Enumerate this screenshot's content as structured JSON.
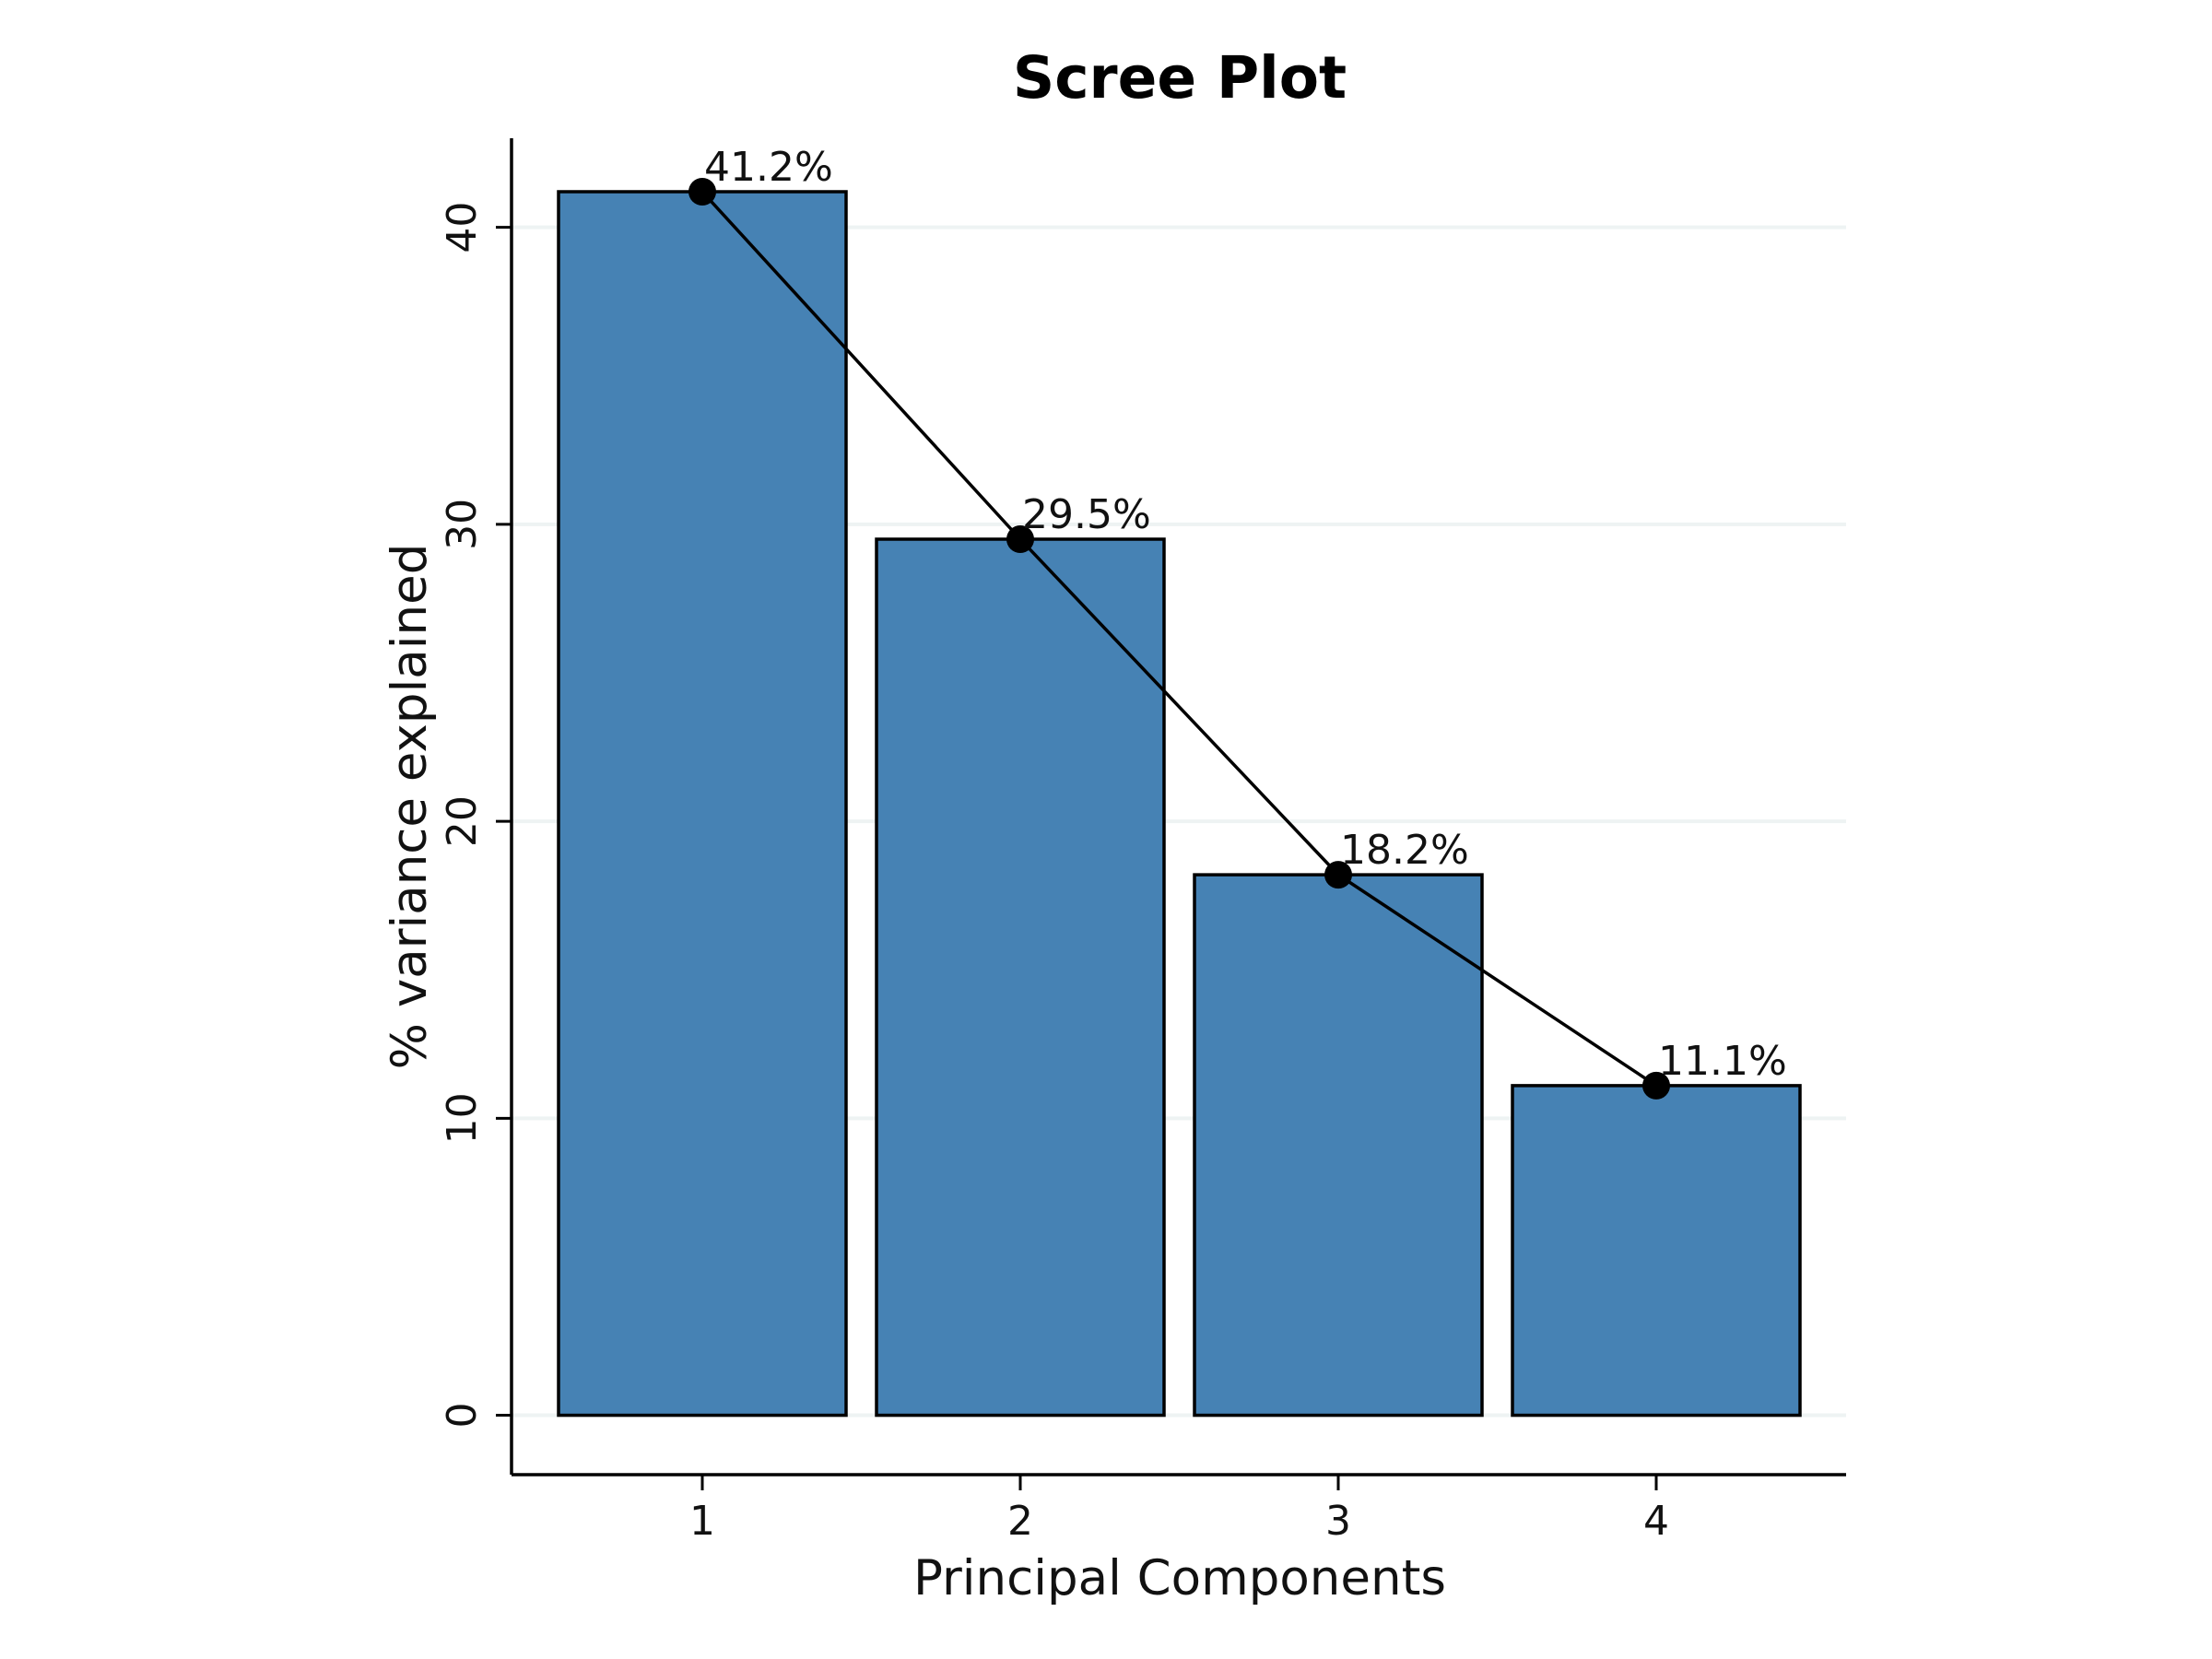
{
  "chart_data": {
    "type": "bar",
    "title": "Scree Plot",
    "xlabel": "Principal Components",
    "ylabel": "% variance explained",
    "categories": [
      "1",
      "2",
      "3",
      "4"
    ],
    "values": [
      41.2,
      29.5,
      18.2,
      11.1
    ],
    "data_labels": [
      "41.2%",
      "29.5%",
      "18.2%",
      "11.1%"
    ],
    "overlay": "line-with-markers",
    "ylim": [
      -2,
      43
    ],
    "yticks": [
      0,
      10,
      20,
      30,
      40
    ],
    "ytick_labels": [
      "0",
      "10",
      "20",
      "30",
      "40"
    ],
    "grid": "horizontal",
    "legend": "none",
    "colors": {
      "bar_fill": "#4682b4",
      "bar_edge": "#000000",
      "line": "#000000",
      "marker": "#000000",
      "grid": "#eef3f3"
    }
  }
}
